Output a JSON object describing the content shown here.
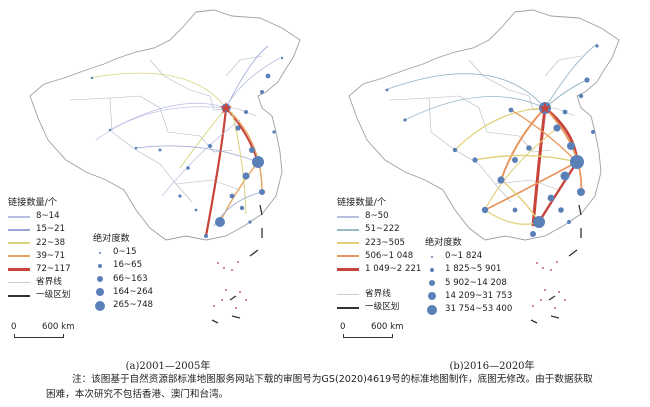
{
  "panels": [
    {
      "id": "a",
      "caption": "(a)2001—2005年",
      "link_legend_title": "链接数量/个",
      "link_classes": [
        {
          "label": "8~14",
          "color": "#b7bce2"
        },
        {
          "label": "15~21",
          "color": "#9aa6d8"
        },
        {
          "label": "22~38",
          "color": "#d8d27a"
        },
        {
          "label": "39~71",
          "color": "#e7a35f"
        },
        {
          "label": "72~117",
          "color": "#c8443b"
        }
      ],
      "boundary_labels": {
        "province": "省界线",
        "first_order": "一级区划"
      },
      "centrality_title": "绝对度数",
      "centrality_classes": [
        "0~15",
        "16~65",
        "66~163",
        "164~264",
        "265~748"
      ],
      "scale": {
        "zero": "0",
        "length": "600 km"
      }
    },
    {
      "id": "b",
      "caption": "(b)2016—2020年",
      "link_legend_title": "链接数量/个",
      "link_classes": [
        {
          "label": "8~50",
          "color": "#b7bce2"
        },
        {
          "label": "51~222",
          "color": "#9ab7c8"
        },
        {
          "label": "223~505",
          "color": "#e2cf7a"
        },
        {
          "label": "506~1 048",
          "color": "#e7955c"
        },
        {
          "label": "1 049~2 221",
          "color": "#c8443b"
        }
      ],
      "boundary_labels": {
        "province": "省界线",
        "first_order": "一级区划"
      },
      "centrality_title": "绝对度数",
      "centrality_classes": [
        "0~1 824",
        "1 825~5 901",
        "5 902~14 208",
        "14 209~31 753",
        "31 754~53 400"
      ],
      "scale": {
        "zero": "0",
        "length": "600 km"
      }
    }
  ],
  "note": {
    "line1": "注：该图基于自然资源部标准地图服务网站下载的审图号为GS(2020)4619号的标准地图制作，底图无修改。由于数据获取",
    "line2": "困难，本次研究不包括香港、澳门和台湾。"
  },
  "colors": {
    "node": "#5b80b8",
    "province_line": "#9aa0aa",
    "border_line": "#333333",
    "capital_star": "#c8443b"
  }
}
